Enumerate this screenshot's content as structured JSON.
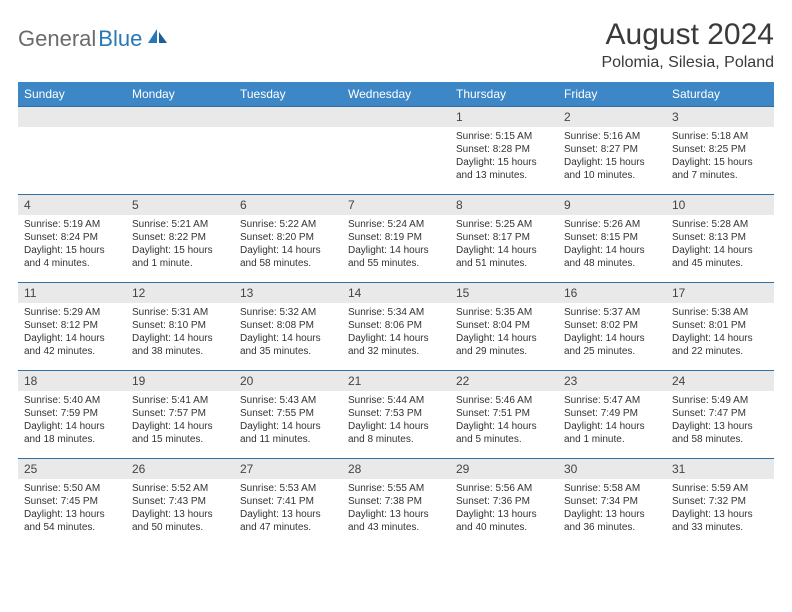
{
  "brand": {
    "part1": "General",
    "part2": "Blue"
  },
  "title": "August 2024",
  "location": "Polomia, Silesia, Poland",
  "colors": {
    "header_bg": "#3d87c6",
    "header_text": "#ffffff",
    "row_border": "#2f6ea3",
    "daynum_bg": "#e9e9e9",
    "body_text": "#333333",
    "logo_gray": "#6b6b6b",
    "logo_blue": "#2878b8"
  },
  "day_headers": [
    "Sunday",
    "Monday",
    "Tuesday",
    "Wednesday",
    "Thursday",
    "Friday",
    "Saturday"
  ],
  "weeks": [
    [
      null,
      null,
      null,
      null,
      {
        "n": "1",
        "sr": "5:15 AM",
        "ss": "8:28 PM",
        "dl": "15 hours and 13 minutes."
      },
      {
        "n": "2",
        "sr": "5:16 AM",
        "ss": "8:27 PM",
        "dl": "15 hours and 10 minutes."
      },
      {
        "n": "3",
        "sr": "5:18 AM",
        "ss": "8:25 PM",
        "dl": "15 hours and 7 minutes."
      }
    ],
    [
      {
        "n": "4",
        "sr": "5:19 AM",
        "ss": "8:24 PM",
        "dl": "15 hours and 4 minutes."
      },
      {
        "n": "5",
        "sr": "5:21 AM",
        "ss": "8:22 PM",
        "dl": "15 hours and 1 minute."
      },
      {
        "n": "6",
        "sr": "5:22 AM",
        "ss": "8:20 PM",
        "dl": "14 hours and 58 minutes."
      },
      {
        "n": "7",
        "sr": "5:24 AM",
        "ss": "8:19 PM",
        "dl": "14 hours and 55 minutes."
      },
      {
        "n": "8",
        "sr": "5:25 AM",
        "ss": "8:17 PM",
        "dl": "14 hours and 51 minutes."
      },
      {
        "n": "9",
        "sr": "5:26 AM",
        "ss": "8:15 PM",
        "dl": "14 hours and 48 minutes."
      },
      {
        "n": "10",
        "sr": "5:28 AM",
        "ss": "8:13 PM",
        "dl": "14 hours and 45 minutes."
      }
    ],
    [
      {
        "n": "11",
        "sr": "5:29 AM",
        "ss": "8:12 PM",
        "dl": "14 hours and 42 minutes."
      },
      {
        "n": "12",
        "sr": "5:31 AM",
        "ss": "8:10 PM",
        "dl": "14 hours and 38 minutes."
      },
      {
        "n": "13",
        "sr": "5:32 AM",
        "ss": "8:08 PM",
        "dl": "14 hours and 35 minutes."
      },
      {
        "n": "14",
        "sr": "5:34 AM",
        "ss": "8:06 PM",
        "dl": "14 hours and 32 minutes."
      },
      {
        "n": "15",
        "sr": "5:35 AM",
        "ss": "8:04 PM",
        "dl": "14 hours and 29 minutes."
      },
      {
        "n": "16",
        "sr": "5:37 AM",
        "ss": "8:02 PM",
        "dl": "14 hours and 25 minutes."
      },
      {
        "n": "17",
        "sr": "5:38 AM",
        "ss": "8:01 PM",
        "dl": "14 hours and 22 minutes."
      }
    ],
    [
      {
        "n": "18",
        "sr": "5:40 AM",
        "ss": "7:59 PM",
        "dl": "14 hours and 18 minutes."
      },
      {
        "n": "19",
        "sr": "5:41 AM",
        "ss": "7:57 PM",
        "dl": "14 hours and 15 minutes."
      },
      {
        "n": "20",
        "sr": "5:43 AM",
        "ss": "7:55 PM",
        "dl": "14 hours and 11 minutes."
      },
      {
        "n": "21",
        "sr": "5:44 AM",
        "ss": "7:53 PM",
        "dl": "14 hours and 8 minutes."
      },
      {
        "n": "22",
        "sr": "5:46 AM",
        "ss": "7:51 PM",
        "dl": "14 hours and 5 minutes."
      },
      {
        "n": "23",
        "sr": "5:47 AM",
        "ss": "7:49 PM",
        "dl": "14 hours and 1 minute."
      },
      {
        "n": "24",
        "sr": "5:49 AM",
        "ss": "7:47 PM",
        "dl": "13 hours and 58 minutes."
      }
    ],
    [
      {
        "n": "25",
        "sr": "5:50 AM",
        "ss": "7:45 PM",
        "dl": "13 hours and 54 minutes."
      },
      {
        "n": "26",
        "sr": "5:52 AM",
        "ss": "7:43 PM",
        "dl": "13 hours and 50 minutes."
      },
      {
        "n": "27",
        "sr": "5:53 AM",
        "ss": "7:41 PM",
        "dl": "13 hours and 47 minutes."
      },
      {
        "n": "28",
        "sr": "5:55 AM",
        "ss": "7:38 PM",
        "dl": "13 hours and 43 minutes."
      },
      {
        "n": "29",
        "sr": "5:56 AM",
        "ss": "7:36 PM",
        "dl": "13 hours and 40 minutes."
      },
      {
        "n": "30",
        "sr": "5:58 AM",
        "ss": "7:34 PM",
        "dl": "13 hours and 36 minutes."
      },
      {
        "n": "31",
        "sr": "5:59 AM",
        "ss": "7:32 PM",
        "dl": "13 hours and 33 minutes."
      }
    ]
  ],
  "labels": {
    "sunrise": "Sunrise:",
    "sunset": "Sunset:",
    "daylight": "Daylight:"
  }
}
